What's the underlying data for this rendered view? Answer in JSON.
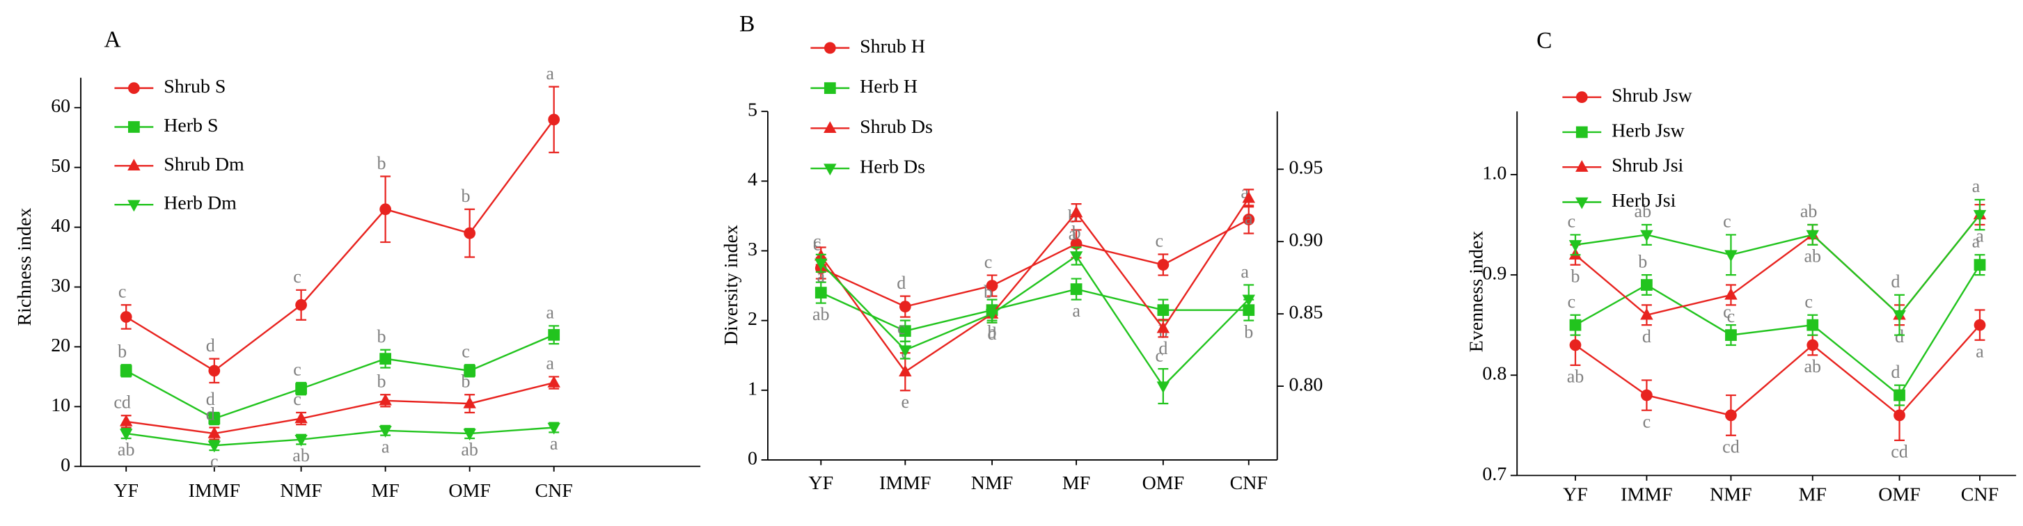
{
  "chart_data": [
    {
      "type": "line",
      "title": "A",
      "y_label": "Richness index",
      "categories": [
        "YF",
        "IMMF",
        "NMF",
        "MF",
        "OMF",
        "CNF"
      ],
      "ylim": [
        0,
        65
      ],
      "yticks": [
        0,
        10,
        20,
        30,
        40,
        50,
        60
      ],
      "series": [
        {
          "name": "Shrub S",
          "color": "#e8231f",
          "marker": "circle",
          "values": [
            25,
            16,
            27,
            43,
            39,
            58
          ],
          "errors": [
            2,
            2,
            2.5,
            5.5,
            4,
            5.5
          ],
          "letters": [
            "c",
            "d",
            "c",
            "b",
            "b",
            "a"
          ]
        },
        {
          "name": "Herb S",
          "color": "#22c41e",
          "marker": "square",
          "values": [
            16,
            8,
            13,
            18,
            16,
            22
          ],
          "errors": [
            1,
            1,
            1,
            1.5,
            1,
            1.5
          ],
          "letters": [
            "b",
            "d",
            "c",
            "b",
            "c",
            "a"
          ]
        },
        {
          "name": "Shrub Dm",
          "color": "#e8231f",
          "marker": "triangle-up",
          "values": [
            7.5,
            5.5,
            8,
            11,
            10.5,
            14
          ],
          "errors": [
            1,
            1,
            1,
            1,
            1.5,
            1
          ],
          "letters": [
            "cd",
            "d",
            "c",
            "b",
            "b",
            "a"
          ]
        },
        {
          "name": "Herb Dm",
          "color": "#22c41e",
          "marker": "triangle-down",
          "values": [
            5.5,
            3.5,
            4.5,
            6,
            5.5,
            6.5
          ],
          "errors": [
            0.8,
            0.8,
            0.8,
            0.8,
            0.8,
            0.8
          ],
          "letters": [
            "ab",
            "c",
            "ab",
            "a",
            "ab",
            "a"
          ]
        }
      ]
    },
    {
      "type": "line",
      "title": "B",
      "y_label": "Diversity index",
      "categories": [
        "YF",
        "IMMF",
        "NMF",
        "MF",
        "OMF",
        "CNF"
      ],
      "ylim": [
        0,
        5
      ],
      "yticks": [
        0,
        1,
        2,
        3,
        4,
        5
      ],
      "y2lim": [
        0.749,
        0.99
      ],
      "y2ticks": [
        {
          "value": 0.8,
          "label": "0.80"
        },
        0.85,
        {
          "value": 0.9,
          "label": "0.90"
        },
        0.95
      ],
      "series": [
        {
          "name": "Shrub H",
          "color": "#e8231f",
          "marker": "circle",
          "values": [
            2.75,
            2.2,
            2.5,
            3.1,
            2.8,
            3.45
          ],
          "errors": [
            0.15,
            0.15,
            0.15,
            0.2,
            0.15,
            0.2
          ],
          "letters": [
            "c",
            "d",
            "c",
            "b",
            "c",
            "a"
          ]
        },
        {
          "name": "Herb H",
          "color": "#22c41e",
          "marker": "square",
          "values": [
            2.4,
            1.85,
            2.15,
            2.45,
            2.15,
            2.15
          ],
          "errors": [
            0.15,
            0.15,
            0.15,
            0.15,
            0.15,
            0.15
          ],
          "letters": [
            "ab",
            "c",
            "b",
            "a",
            "b",
            "b"
          ]
        },
        {
          "name": "Shrub Ds",
          "color": "#e8231f",
          "marker": "triangle-up",
          "axis": "y2",
          "values": [
            0.89,
            0.81,
            0.85,
            0.92,
            0.84,
            0.93
          ],
          "errors": [
            0.006,
            0.013,
            0.006,
            0.006,
            0.006,
            0.006
          ],
          "letters": [
            "a",
            "e",
            "d",
            "b",
            "d",
            "a"
          ]
        },
        {
          "name": "Herb Ds",
          "color": "#22c41e",
          "marker": "triangle-down",
          "axis": "y2",
          "values": [
            0.885,
            0.825,
            0.85,
            0.89,
            0.8,
            0.86
          ],
          "errors": [
            0.006,
            0.006,
            0.006,
            0.006,
            0.012,
            0.01
          ],
          "letters": [
            "c",
            "c",
            "b",
            "a",
            "c",
            "a"
          ]
        }
      ]
    },
    {
      "type": "line",
      "title": "C",
      "y_label": "Evenness index",
      "categories": [
        "YF",
        "IMMF",
        "NMF",
        "MF",
        "OMF",
        "CNF"
      ],
      "ylim": [
        0.7,
        1.063
      ],
      "yticks": [
        0.7,
        0.8,
        0.9,
        {
          "value": 1.0,
          "label": "1.0"
        }
      ],
      "series": [
        {
          "name": "Shrub Jsw",
          "color": "#e8231f",
          "marker": "circle",
          "values": [
            0.83,
            0.78,
            0.76,
            0.83,
            0.76,
            0.85
          ],
          "errors": [
            0.02,
            0.015,
            0.02,
            0.01,
            0.025,
            0.015
          ],
          "letters": [
            "ab",
            "c",
            "cd",
            "ab",
            "cd",
            "a"
          ]
        },
        {
          "name": "Herb Jsw",
          "color": "#22c41e",
          "marker": "square",
          "values": [
            0.85,
            0.89,
            0.84,
            0.85,
            0.78,
            0.91
          ],
          "errors": [
            0.01,
            0.01,
            0.01,
            0.01,
            0.01,
            0.01
          ],
          "letters": [
            "c",
            "b",
            "c",
            "c",
            "d",
            "a"
          ]
        },
        {
          "name": "Shrub Jsi",
          "color": "#e8231f",
          "marker": "triangle-up",
          "values": [
            0.92,
            0.86,
            0.88,
            0.94,
            0.86,
            0.96
          ],
          "errors": [
            0.01,
            0.01,
            0.01,
            0.01,
            0.01,
            0.01
          ],
          "letters": [
            "b",
            "d",
            "c",
            "ab",
            "d",
            "a"
          ]
        },
        {
          "name": "Herb Jsi",
          "color": "#22c41e",
          "marker": "triangle-down",
          "values": [
            0.93,
            0.94,
            0.92,
            0.94,
            0.86,
            0.96
          ],
          "errors": [
            0.01,
            0.01,
            0.02,
            0.01,
            0.02,
            0.015
          ],
          "letters": [
            "c",
            "ab",
            "c",
            "ab",
            "d",
            "a"
          ]
        }
      ]
    }
  ]
}
